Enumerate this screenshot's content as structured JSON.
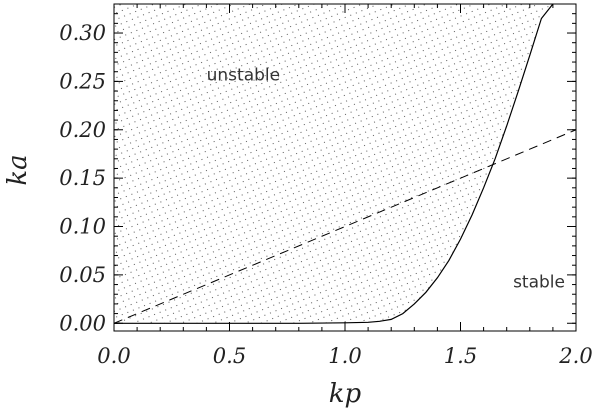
{
  "chart_data": {
    "type": "line",
    "title": "",
    "xlabel": "kp",
    "ylabel": "ka",
    "xlim": [
      0.0,
      2.0
    ],
    "ylim": [
      -0.008,
      0.33
    ],
    "x_ticks": [
      "0.0",
      "0.5",
      "1.0",
      "1.5",
      "2.0"
    ],
    "x_tick_values": [
      0.0,
      0.5,
      1.0,
      1.5,
      2.0
    ],
    "y_ticks": [
      "0.00",
      "0.05",
      "0.10",
      "0.15",
      "0.20",
      "0.25",
      "0.30"
    ],
    "y_tick_values": [
      0.0,
      0.05,
      0.1,
      0.15,
      0.2,
      0.25,
      0.3
    ],
    "grid": false,
    "series": [
      {
        "style": "solid",
        "color": "#000000",
        "fill_above": "dotted",
        "x": [
          0.0,
          0.8,
          1.0,
          1.1,
          1.15,
          1.2,
          1.25,
          1.3,
          1.35,
          1.4,
          1.45,
          1.5,
          1.55,
          1.6,
          1.65,
          1.7,
          1.75,
          1.8,
          1.85,
          1.9
        ],
        "y": [
          0.0,
          0.0,
          0.0005,
          0.001,
          0.002,
          0.004,
          0.01,
          0.02,
          0.032,
          0.047,
          0.065,
          0.087,
          0.112,
          0.14,
          0.17,
          0.204,
          0.24,
          0.277,
          0.315,
          0.33
        ]
      },
      {
        "style": "dashed",
        "color": "#000000",
        "x": [
          0.0,
          2.0
        ],
        "y": [
          0.0,
          0.2
        ]
      }
    ],
    "annotations": [
      {
        "text": "unstable",
        "x": 0.56,
        "y": 0.257
      },
      {
        "text": "stable",
        "x": 1.84,
        "y": 0.043
      }
    ]
  }
}
